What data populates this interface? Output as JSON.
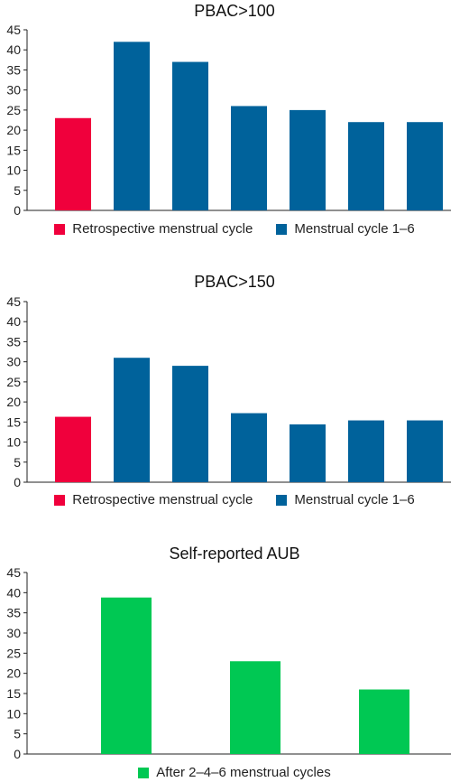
{
  "chart_data": [
    {
      "type": "bar",
      "title": "PBAC>100",
      "categories": [
        "",
        "",
        "",
        "",
        "",
        "",
        ""
      ],
      "values": [
        23,
        42,
        37,
        26,
        25,
        22,
        22
      ],
      "bar_series": [
        0,
        1,
        1,
        1,
        1,
        1,
        1
      ],
      "series": [
        {
          "name": "Retrospective menstrual cycle",
          "color": "#f0003c"
        },
        {
          "name": "Menstrual cycle 1–6",
          "color": "#00629b"
        }
      ],
      "ylim": [
        0,
        45
      ],
      "yticks": [
        "0",
        "5",
        "10",
        "15",
        "20",
        "25",
        "30",
        "35",
        "40",
        "45"
      ],
      "grid": false,
      "legend_position": "bottom"
    },
    {
      "type": "bar",
      "title": "PBAC>150",
      "categories": [
        "",
        "",
        "",
        "",
        "",
        "",
        ""
      ],
      "values": [
        16.3,
        31,
        29,
        17.2,
        14.4,
        15.4,
        15.4
      ],
      "bar_series": [
        0,
        1,
        1,
        1,
        1,
        1,
        1
      ],
      "series": [
        {
          "name": "Retrospective menstrual cycle",
          "color": "#f0003c"
        },
        {
          "name": "Menstrual cycle 1–6",
          "color": "#00629b"
        }
      ],
      "ylim": [
        0,
        45
      ],
      "yticks": [
        "0",
        "5",
        "10",
        "15",
        "20",
        "25",
        "30",
        "35",
        "40",
        "45"
      ],
      "grid": false,
      "legend_position": "bottom"
    },
    {
      "type": "bar",
      "title": "Self-reported AUB",
      "categories": [
        "",
        "",
        ""
      ],
      "values": [
        38.8,
        23,
        16
      ],
      "bar_series": [
        0,
        0,
        0
      ],
      "series": [
        {
          "name": "After 2–4–6 menstrual cycles",
          "color": "#00c853"
        }
      ],
      "ylim": [
        0,
        45
      ],
      "yticks": [
        "0",
        "5",
        "10",
        "15",
        "20",
        "25",
        "30",
        "35",
        "40",
        "45"
      ],
      "grid": false,
      "legend_position": "bottom"
    }
  ]
}
